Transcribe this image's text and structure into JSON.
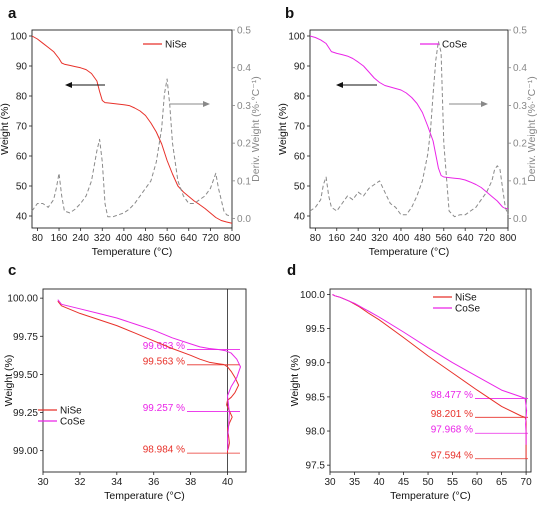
{
  "chart_data": [
    {
      "panel": "a",
      "type": "line",
      "xlabel": "Temperature (°C)",
      "ylabel": "Weight (%)",
      "y2label": "Deriv. Weight (%·°C⁻¹)",
      "xlim": [
        60,
        800
      ],
      "ylim": [
        36,
        102
      ],
      "y2lim": [
        -0.025,
        0.5
      ],
      "xticks": [
        80,
        160,
        240,
        320,
        400,
        480,
        560,
        640,
        720,
        800
      ],
      "yticks": [
        40,
        50,
        60,
        70,
        80,
        90,
        100
      ],
      "y2ticks": [
        0.0,
        0.1,
        0.2,
        0.3,
        0.4,
        0.5
      ],
      "legend": "top-right",
      "series": [
        {
          "name": "NiSe",
          "axis": "left",
          "color": "#e8312a",
          "style": "solid",
          "x": [
            60,
            80,
            100,
            120,
            140,
            160,
            170,
            180,
            200,
            220,
            240,
            260,
            280,
            300,
            310,
            320,
            330,
            340,
            360,
            380,
            400,
            420,
            440,
            460,
            480,
            500,
            520,
            540,
            560,
            580,
            600,
            620,
            640,
            660,
            680,
            700,
            720,
            740,
            760,
            780,
            800
          ],
          "y": [
            100,
            99,
            97.6,
            96.2,
            94.8,
            92.5,
            91,
            90.6,
            90.2,
            89.8,
            89.4,
            88.8,
            87.5,
            85,
            81.5,
            78.5,
            77.8,
            77.7,
            77.5,
            77.3,
            77.1,
            76.8,
            76,
            75,
            73.5,
            71,
            68,
            64,
            58.5,
            54,
            50,
            48,
            46.5,
            45,
            43.8,
            42.5,
            41,
            39.5,
            38.5,
            38,
            37.6
          ]
        },
        {
          "name": "",
          "axis": "right",
          "color": "#8a8a8a",
          "style": "dashed",
          "x": [
            60,
            80,
            100,
            120,
            140,
            150,
            160,
            170,
            180,
            200,
            220,
            240,
            260,
            280,
            300,
            310,
            320,
            330,
            340,
            360,
            380,
            400,
            420,
            440,
            460,
            480,
            500,
            520,
            540,
            550,
            560,
            570,
            580,
            600,
            620,
            640,
            660,
            680,
            700,
            720,
            730,
            740,
            750,
            760,
            770,
            780,
            800
          ],
          "y": [
            0.02,
            0.04,
            0.04,
            0.03,
            0.05,
            0.08,
            0.12,
            0.06,
            0.02,
            0.015,
            0.025,
            0.04,
            0.06,
            0.1,
            0.18,
            0.21,
            0.15,
            0.04,
            0.005,
            0.005,
            0.01,
            0.015,
            0.025,
            0.04,
            0.06,
            0.08,
            0.1,
            0.15,
            0.24,
            0.33,
            0.37,
            0.3,
            0.2,
            0.1,
            0.06,
            0.04,
            0.04,
            0.05,
            0.06,
            0.08,
            0.1,
            0.12,
            0.08,
            0.05,
            0.02,
            0.01,
            0.005
          ]
        }
      ]
    },
    {
      "panel": "b",
      "type": "line",
      "xlabel": "Temperature (°C)",
      "ylabel": "Weight (%)",
      "y2label": "Deriv. Weight (%·°C⁻¹)",
      "xlim": [
        60,
        800
      ],
      "ylim": [
        36,
        102
      ],
      "y2lim": [
        -0.025,
        0.5
      ],
      "xticks": [
        80,
        160,
        240,
        320,
        400,
        480,
        560,
        640,
        720,
        800
      ],
      "yticks": [
        40,
        50,
        60,
        70,
        80,
        90,
        100
      ],
      "y2ticks": [
        0.0,
        0.1,
        0.2,
        0.3,
        0.4,
        0.5
      ],
      "legend": "top-right",
      "series": [
        {
          "name": "CoSe",
          "axis": "left",
          "color": "#ea25e8",
          "style": "solid",
          "x": [
            60,
            80,
            100,
            120,
            140,
            160,
            180,
            200,
            220,
            240,
            260,
            280,
            300,
            320,
            340,
            360,
            380,
            400,
            420,
            440,
            460,
            480,
            500,
            520,
            540,
            550,
            560,
            580,
            600,
            620,
            640,
            660,
            680,
            700,
            720,
            740,
            760,
            780,
            790,
            800
          ],
          "y": [
            100,
            99.5,
            98.7,
            97.5,
            94.8,
            94.2,
            93.8,
            93.3,
            92.5,
            91.3,
            90,
            88,
            86,
            84.5,
            83.5,
            83,
            82.5,
            82,
            81,
            79.5,
            77.5,
            74.5,
            70,
            65,
            56,
            53.5,
            53,
            52.8,
            52.6,
            52.4,
            52,
            51.3,
            50.5,
            49.5,
            48,
            46.5,
            45,
            43,
            42.5,
            42.5
          ]
        },
        {
          "name": "",
          "axis": "right",
          "color": "#8a8a8a",
          "style": "dashed",
          "x": [
            60,
            80,
            100,
            110,
            120,
            130,
            140,
            160,
            180,
            200,
            220,
            240,
            260,
            280,
            300,
            320,
            340,
            360,
            380,
            400,
            420,
            440,
            460,
            480,
            500,
            510,
            520,
            530,
            540,
            550,
            560,
            580,
            600,
            620,
            640,
            660,
            680,
            700,
            720,
            740,
            750,
            760,
            770,
            780,
            790,
            800
          ],
          "y": [
            0.02,
            0.03,
            0.05,
            0.09,
            0.11,
            0.06,
            0.03,
            0.02,
            0.04,
            0.06,
            0.05,
            0.07,
            0.06,
            0.08,
            0.09,
            0.1,
            0.07,
            0.04,
            0.03,
            0.01,
            0.01,
            0.03,
            0.06,
            0.1,
            0.17,
            0.23,
            0.33,
            0.42,
            0.47,
            0.44,
            0.2,
            0.02,
            0.005,
            0.01,
            0.01,
            0.02,
            0.03,
            0.05,
            0.07,
            0.1,
            0.13,
            0.14,
            0.13,
            0.08,
            0.03,
            0.01
          ]
        }
      ]
    },
    {
      "panel": "c",
      "type": "line",
      "xlabel": "Temperature (°C)",
      "ylabel": "Weight (%)",
      "xlim": [
        30,
        41
      ],
      "ylim": [
        98.86,
        100.06
      ],
      "xticks": [
        30,
        32,
        34,
        36,
        38,
        40
      ],
      "yticks": [
        99.0,
        99.25,
        99.5,
        99.75,
        100.0
      ],
      "legend": "bottom-left",
      "series": [
        {
          "name": "NiSe",
          "color": "#e8312a",
          "style": "solid",
          "x": [
            30.8,
            31,
            32,
            33,
            34,
            35,
            36,
            37,
            38,
            38.5,
            39,
            39.5,
            39.8,
            40.0,
            40.2,
            40.4,
            40.6,
            40.4,
            40.2,
            40.0,
            39.95,
            40.1,
            40.25,
            40.1,
            40.0,
            40.05,
            40.1,
            40.05,
            40.0,
            40.0
          ],
          "y": [
            99.98,
            99.95,
            99.9,
            99.86,
            99.82,
            99.77,
            99.72,
            99.67,
            99.625,
            99.6,
            99.58,
            99.57,
            99.565,
            99.55,
            99.52,
            99.48,
            99.43,
            99.38,
            99.35,
            99.33,
            99.3,
            99.26,
            99.22,
            99.18,
            99.14,
            99.1,
            99.05,
            99.02,
            99.0,
            98.984
          ]
        },
        {
          "name": "CoSe",
          "color": "#ea25e8",
          "style": "solid",
          "x": [
            30.8,
            31,
            32,
            33,
            34,
            35,
            36,
            37,
            38,
            38.5,
            39,
            39.5,
            39.9,
            40.2,
            40.5,
            40.7,
            40.5,
            40.2,
            40.0,
            40.05,
            40.1,
            40.05,
            40.0,
            40.02,
            40.0
          ],
          "y": [
            99.99,
            99.96,
            99.93,
            99.9,
            99.87,
            99.83,
            99.79,
            99.74,
            99.7,
            99.68,
            99.67,
            99.663,
            99.655,
            99.64,
            99.6,
            99.55,
            99.48,
            99.42,
            99.36,
            99.3,
            99.25,
            99.15,
            99.08,
            99.03,
            99.0
          ]
        }
      ],
      "annotations": [
        {
          "text": "99.663 %",
          "y": 99.663,
          "color": "#ea25e8"
        },
        {
          "text": "99.563 %",
          "y": 99.563,
          "color": "#e8312a"
        },
        {
          "text": "99.257 %",
          "y": 99.257,
          "color": "#ea25e8"
        },
        {
          "text": "98.984 %",
          "y": 98.984,
          "color": "#e8312a"
        }
      ]
    },
    {
      "panel": "d",
      "type": "line",
      "xlabel": "Temperature (°C)",
      "ylabel": "Weight (%)",
      "xlim": [
        30,
        71
      ],
      "ylim": [
        97.4,
        100.08
      ],
      "xticks": [
        30,
        35,
        40,
        45,
        50,
        55,
        60,
        65,
        70
      ],
      "yticks": [
        97.5,
        98.0,
        98.5,
        99.0,
        99.5,
        100.0
      ],
      "legend": "top-right",
      "series": [
        {
          "name": "NiSe",
          "color": "#e8312a",
          "style": "solid",
          "x": [
            30.5,
            31,
            32,
            33,
            34,
            35,
            36,
            37,
            38,
            40,
            45,
            50,
            55,
            60,
            65,
            69,
            69.8,
            70,
            70,
            70,
            70
          ],
          "y": [
            100.0,
            99.98,
            99.96,
            99.93,
            99.9,
            99.86,
            99.82,
            99.77,
            99.72,
            99.63,
            99.37,
            99.1,
            98.85,
            98.6,
            98.36,
            98.22,
            98.2,
            98.15,
            98.0,
            97.8,
            97.594
          ]
        },
        {
          "name": "CoSe",
          "color": "#ea25e8",
          "style": "solid",
          "x": [
            30.5,
            31,
            32,
            33,
            34,
            35,
            36,
            37,
            38,
            40,
            45,
            50,
            55,
            60,
            65,
            69,
            69.8,
            70.1,
            69.9,
            70,
            70
          ],
          "y": [
            100.0,
            99.98,
            99.96,
            99.93,
            99.9,
            99.87,
            99.83,
            99.79,
            99.75,
            99.67,
            99.45,
            99.22,
            99.0,
            98.8,
            98.6,
            98.5,
            98.48,
            98.3,
            98.1,
            97.97,
            97.8
          ]
        }
      ],
      "annotations": [
        {
          "text": "98.477 %",
          "y": 98.477,
          "color": "#ea25e8"
        },
        {
          "text": "98.201 %",
          "y": 98.201,
          "color": "#e8312a"
        },
        {
          "text": "97.968 %",
          "y": 97.968,
          "color": "#ea25e8"
        },
        {
          "text": "97.594 %",
          "y": 97.594,
          "color": "#e8312a"
        }
      ]
    }
  ]
}
